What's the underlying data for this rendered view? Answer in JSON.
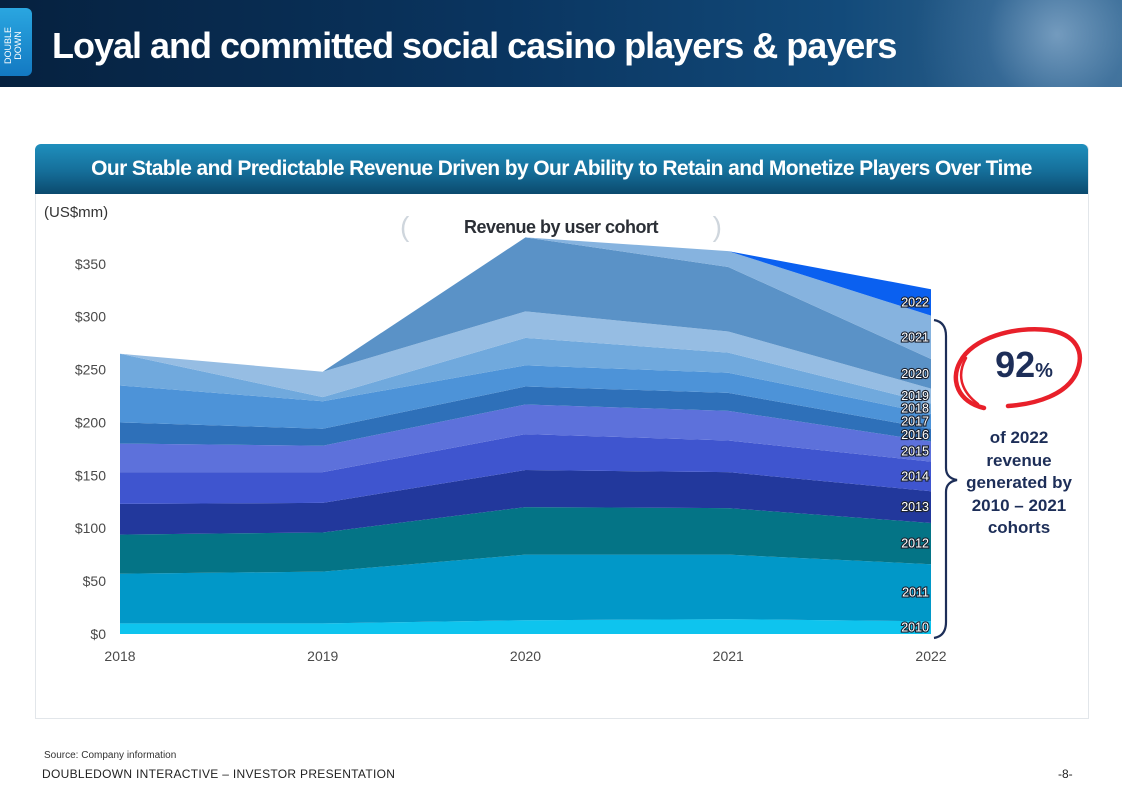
{
  "header": {
    "logo_text": "DOUBLE\nDOWN",
    "title": "Loyal and committed social casino players & payers"
  },
  "panel": {
    "heading": "Our Stable and Predictable Revenue Driven by Our Ability to Retain and Monetize Players Over Time",
    "unit": "(US$mm)"
  },
  "callout": {
    "percent_value": "92",
    "percent_sign": "%",
    "note_lines": [
      "of 2022",
      "revenue",
      "generated by",
      "2010 – 2021",
      "cohorts"
    ]
  },
  "footer": {
    "source": "Source: Company information",
    "company": "DOUBLEDOWN INTERACTIVE – INVESTOR PRESENTATION",
    "page": "-8-"
  },
  "chart_data": {
    "type": "area",
    "stacked": true,
    "title": "Revenue by user cohort",
    "ylabel": "(US$mm)",
    "x": [
      "2018",
      "2019",
      "2020",
      "2021",
      "2022"
    ],
    "ylim": [
      0,
      360
    ],
    "yticks": [
      0,
      50,
      100,
      150,
      200,
      250,
      300,
      350
    ],
    "ytick_labels": [
      "$0",
      "$50",
      "$100",
      "$150",
      "$200",
      "$250",
      "$300",
      "$350"
    ],
    "grid": false,
    "colors": {
      "2010": "#0ec4ee",
      "2011": "#0198c8",
      "2012": "#047486",
      "2013": "#22389c",
      "2014": "#3f55cf",
      "2015": "#5d71db",
      "2016": "#2e70b9",
      "2017": "#4d93d8",
      "2018": "#70a9dd",
      "2019": "#96bde3",
      "2020": "#5a92c7",
      "2021": "#86b3df",
      "2022": "#0a60f0"
    },
    "series": [
      {
        "name": "2010",
        "values": [
          10,
          10,
          13,
          14,
          12
        ]
      },
      {
        "name": "2011",
        "values": [
          47,
          49,
          62,
          61,
          54
        ]
      },
      {
        "name": "2012",
        "values": [
          37,
          37,
          45,
          44,
          39
        ]
      },
      {
        "name": "2013",
        "values": [
          29,
          28,
          35,
          34,
          30
        ]
      },
      {
        "name": "2014",
        "values": [
          30,
          29,
          34,
          30,
          28
        ]
      },
      {
        "name": "2015",
        "values": [
          27,
          25,
          28,
          28,
          19
        ]
      },
      {
        "name": "2016",
        "values": [
          20,
          16,
          17,
          17,
          12
        ]
      },
      {
        "name": "2017",
        "values": [
          35,
          26,
          20,
          19,
          14
        ]
      },
      {
        "name": "2018",
        "values": [
          30,
          4,
          26,
          19,
          10
        ]
      },
      {
        "name": "2019",
        "values": [
          0,
          24,
          25,
          20,
          14
        ]
      },
      {
        "name": "2020",
        "values": [
          0,
          0,
          70,
          61,
          28
        ]
      },
      {
        "name": "2021",
        "values": [
          0,
          0,
          0,
          15,
          41
        ]
      },
      {
        "name": "2022",
        "values": [
          0,
          0,
          0,
          0,
          25
        ]
      }
    ]
  }
}
